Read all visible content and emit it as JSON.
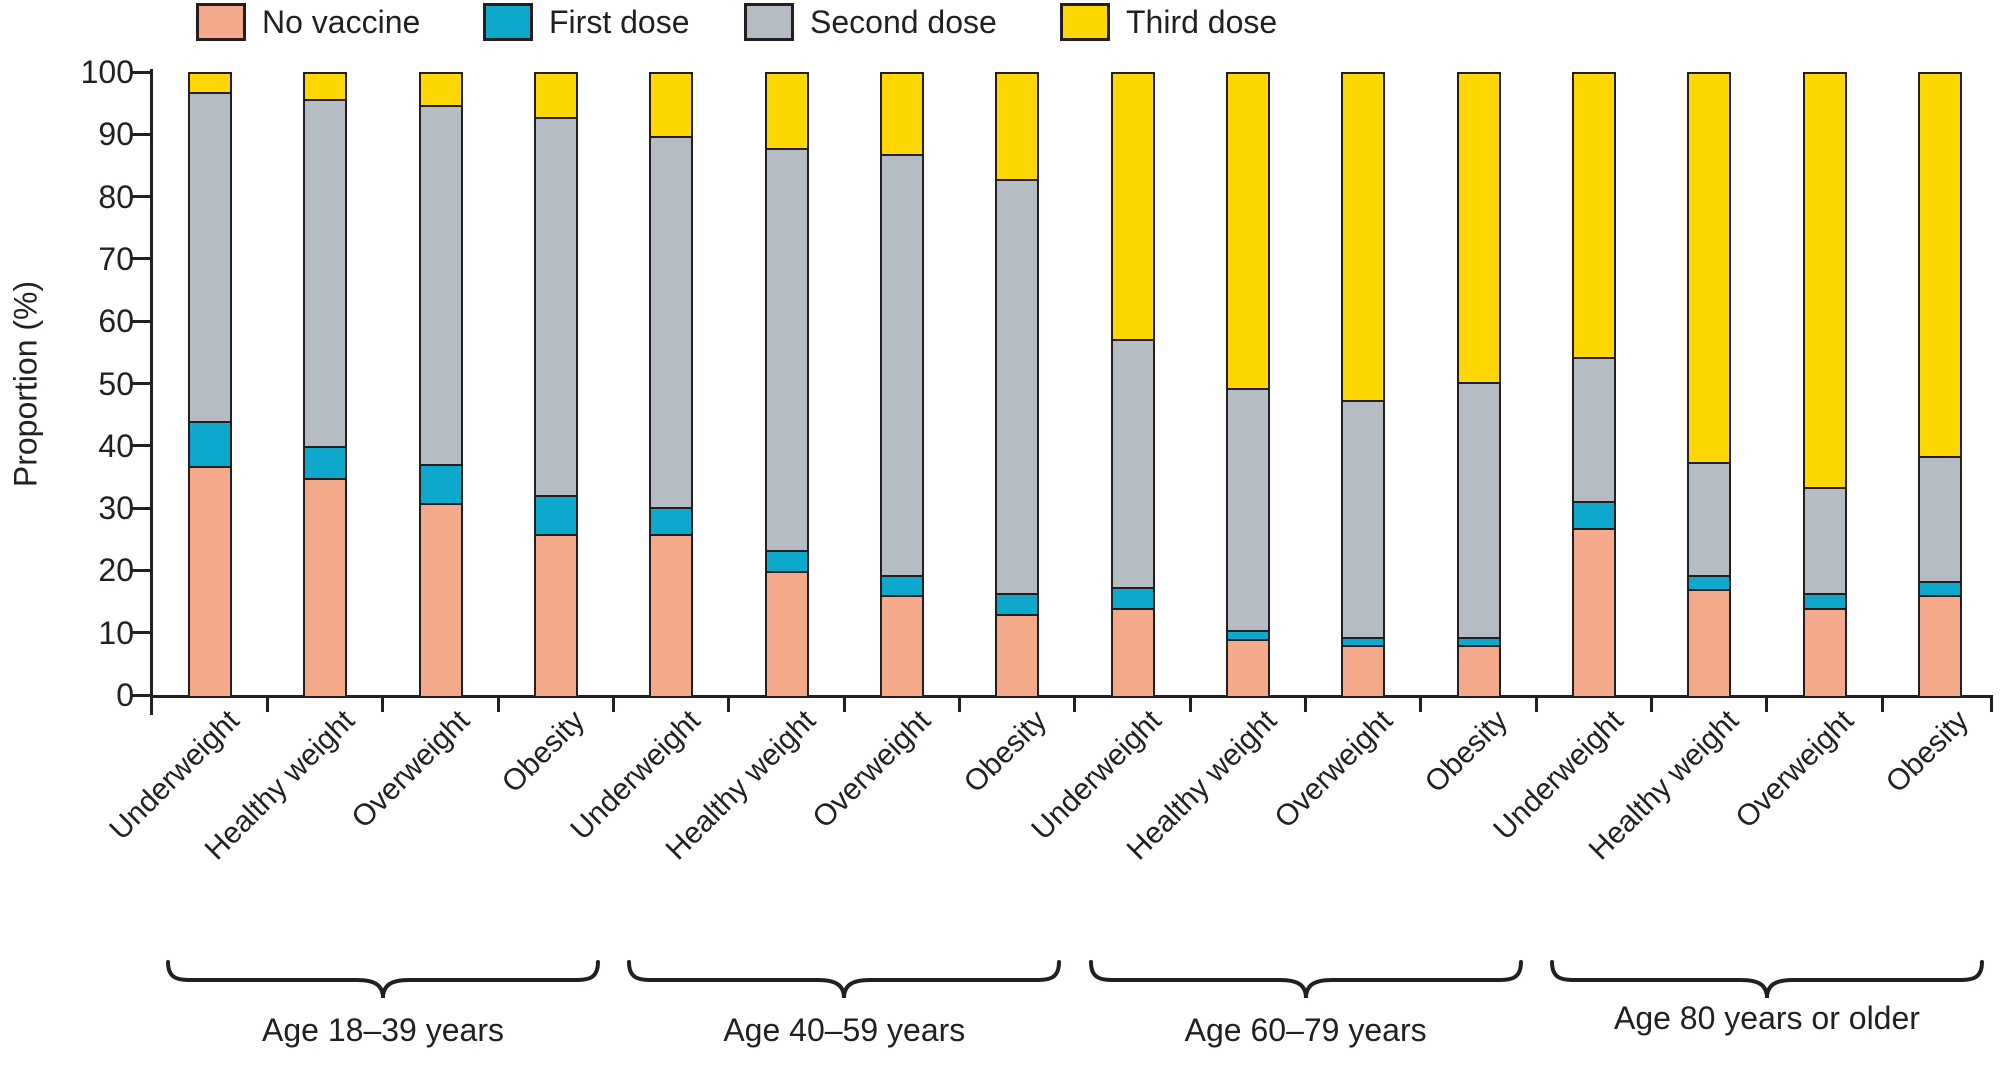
{
  "chart_data": {
    "type": "bar",
    "stacked": true,
    "title": "",
    "xlabel": "",
    "ylabel": "Proportion (%)",
    "ylim": [
      0,
      100
    ],
    "yticks": [
      0,
      10,
      20,
      30,
      40,
      50,
      60,
      70,
      80,
      90,
      100
    ],
    "grid": false,
    "legend_position": "top",
    "axis_color": "#231F20",
    "categories": [
      "Underweight",
      "Healthy weight",
      "Overweight",
      "Obesity",
      "Underweight",
      "Healthy weight",
      "Overweight",
      "Obesity",
      "Underweight",
      "Healthy weight",
      "Overweight",
      "Obesity",
      "Underweight",
      "Healthy weight",
      "Overweight",
      "Obesity"
    ],
    "groups": [
      {
        "label": "Age 18–39 years",
        "from": 0,
        "to": 3
      },
      {
        "label": "Age 40–59 years",
        "from": 4,
        "to": 7
      },
      {
        "label": "Age 60–79 years",
        "from": 8,
        "to": 11
      },
      {
        "label": "Age 80 years or older",
        "from": 12,
        "to": 15
      }
    ],
    "series": [
      {
        "name": "No vaccine",
        "color": "#F5A98B",
        "values": [
          37,
          35,
          31,
          26,
          26,
          20,
          16,
          13,
          14,
          9,
          8,
          8,
          27,
          17,
          14,
          16
        ]
      },
      {
        "name": "First dose",
        "color": "#0DA8CC",
        "values": [
          7,
          5,
          6,
          6,
          4,
          3,
          3,
          3,
          3,
          1,
          1,
          1,
          4,
          2,
          2,
          2
        ]
      },
      {
        "name": "Second dose",
        "color": "#B5BCC4",
        "values": [
          53,
          56,
          58,
          61,
          60,
          65,
          68,
          67,
          40,
          39,
          38,
          41,
          23,
          18,
          17,
          20
        ]
      },
      {
        "name": "Third dose",
        "color": "#FFD700",
        "values": [
          3,
          4,
          5,
          7,
          10,
          12,
          13,
          17,
          43,
          51,
          53,
          50,
          46,
          63,
          67,
          62
        ]
      }
    ]
  }
}
